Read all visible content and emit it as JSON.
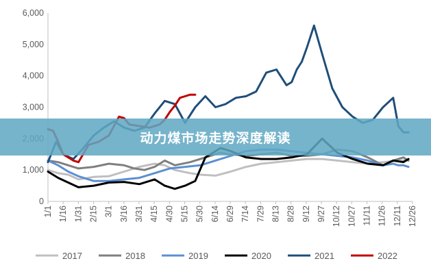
{
  "banner": {
    "title": "动力煤市场走势深度解读"
  },
  "chart_data": {
    "type": "line",
    "grid": false,
    "legend_position": "bottom",
    "ylim": [
      0,
      6000
    ],
    "y_ticks": [
      "0",
      "1,000",
      "2,000",
      "3,000",
      "4,000",
      "5,000",
      "6,000"
    ],
    "y_tick_values": [
      0,
      1000,
      2000,
      3000,
      4000,
      5000,
      6000
    ],
    "x_tick_labels": [
      "1/1",
      "1/16",
      "1/31",
      "2/15",
      "3/1",
      "3/16",
      "3/31",
      "4/15",
      "4/30",
      "5/15",
      "5/30",
      "6/14",
      "6/29",
      "7/14",
      "7/29",
      "8/13",
      "8/28",
      "9/12",
      "9/27",
      "10/12",
      "10/27",
      "11/11",
      "11/26",
      "12/11",
      "12/26"
    ],
    "x_range_days": [
      0,
      359
    ],
    "series": [
      {
        "name": "2017",
        "color": "#bfbfbf",
        "x": [
          0,
          10,
          20,
          30,
          45,
          60,
          75,
          90,
          105,
          115,
          125,
          140,
          150,
          165,
          180,
          195,
          210,
          225,
          240,
          255,
          270,
          285,
          300,
          315,
          330,
          345,
          355
        ],
        "y": [
          1000,
          900,
          850,
          700,
          780,
          800,
          950,
          1100,
          1200,
          1150,
          1000,
          900,
          850,
          820,
          950,
          1100,
          1200,
          1250,
          1300,
          1350,
          1350,
          1300,
          1250,
          1200,
          1250,
          1300,
          1300
        ]
      },
      {
        "name": "2018",
        "color": "#7f7f7f",
        "x": [
          0,
          10,
          20,
          30,
          45,
          60,
          75,
          85,
          95,
          105,
          115,
          125,
          140,
          155,
          170,
          180,
          195,
          210,
          225,
          240,
          255,
          270,
          285,
          300,
          315,
          330,
          340,
          350,
          355
        ],
        "y": [
          1300,
          1250,
          1150,
          1050,
          1100,
          1200,
          1150,
          1050,
          1000,
          1100,
          1300,
          1150,
          1250,
          1400,
          1550,
          1500,
          1450,
          1500,
          1550,
          1450,
          1450,
          1500,
          1650,
          1600,
          1400,
          1150,
          1300,
          1400,
          1300
        ]
      },
      {
        "name": "2019",
        "color": "#5b8fd2",
        "x": [
          0,
          10,
          20,
          30,
          45,
          60,
          75,
          90,
          105,
          120,
          135,
          150,
          165,
          180,
          195,
          210,
          225,
          240,
          255,
          270,
          285,
          300,
          315,
          330,
          340,
          345,
          350,
          355
        ],
        "y": [
          1300,
          1150,
          950,
          800,
          650,
          650,
          700,
          750,
          900,
          1050,
          1100,
          1150,
          1300,
          1450,
          1600,
          1650,
          1650,
          1600,
          1550,
          1500,
          1450,
          1400,
          1300,
          1150,
          1200,
          1150,
          1150,
          1100
        ]
      },
      {
        "name": "2020",
        "color": "#000000",
        "x": [
          0,
          10,
          20,
          30,
          45,
          60,
          75,
          90,
          105,
          115,
          125,
          135,
          145,
          155,
          170,
          180,
          195,
          210,
          225,
          240,
          255,
          270,
          285,
          300,
          315,
          330,
          340,
          350,
          355
        ],
        "y": [
          950,
          750,
          600,
          450,
          500,
          600,
          620,
          550,
          700,
          500,
          400,
          500,
          650,
          1400,
          1700,
          1600,
          1400,
          1350,
          1350,
          1400,
          1500,
          2000,
          1550,
          1350,
          1200,
          1150,
          1300,
          1250,
          1350
        ]
      },
      {
        "name": "2021",
        "color": "#1f4e79",
        "x": [
          0,
          8,
          15,
          25,
          35,
          45,
          55,
          65,
          75,
          85,
          95,
          105,
          115,
          125,
          135,
          145,
          155,
          165,
          175,
          185,
          195,
          205,
          215,
          225,
          235,
          240,
          245,
          250,
          255,
          262,
          270,
          280,
          290,
          300,
          310,
          320,
          330,
          340,
          345,
          350,
          355
        ],
        "y": [
          1250,
          1900,
          1500,
          1350,
          1700,
          2100,
          2350,
          2550,
          2350,
          2250,
          2350,
          2800,
          3200,
          3100,
          2500,
          3000,
          3350,
          3000,
          3100,
          3300,
          3350,
          3500,
          4100,
          4200,
          3700,
          3800,
          4200,
          4450,
          4900,
          5600,
          4700,
          3600,
          3000,
          2700,
          2500,
          2600,
          3000,
          3300,
          2400,
          2200,
          2200
        ]
      },
      {
        "name": "2022",
        "color": "#c00000",
        "x": [
          0,
          5,
          10,
          15,
          20,
          25,
          30,
          40,
          50,
          60,
          70,
          75,
          80,
          90,
          100,
          110,
          115,
          120,
          125,
          130,
          135,
          140,
          145
        ],
        "y": [
          2300,
          2250,
          1900,
          1500,
          1400,
          1300,
          1250,
          1800,
          1900,
          2100,
          2700,
          2650,
          2450,
          2400,
          2350,
          2450,
          2600,
          2850,
          3050,
          3300,
          3350,
          3400,
          3400
        ]
      }
    ]
  }
}
